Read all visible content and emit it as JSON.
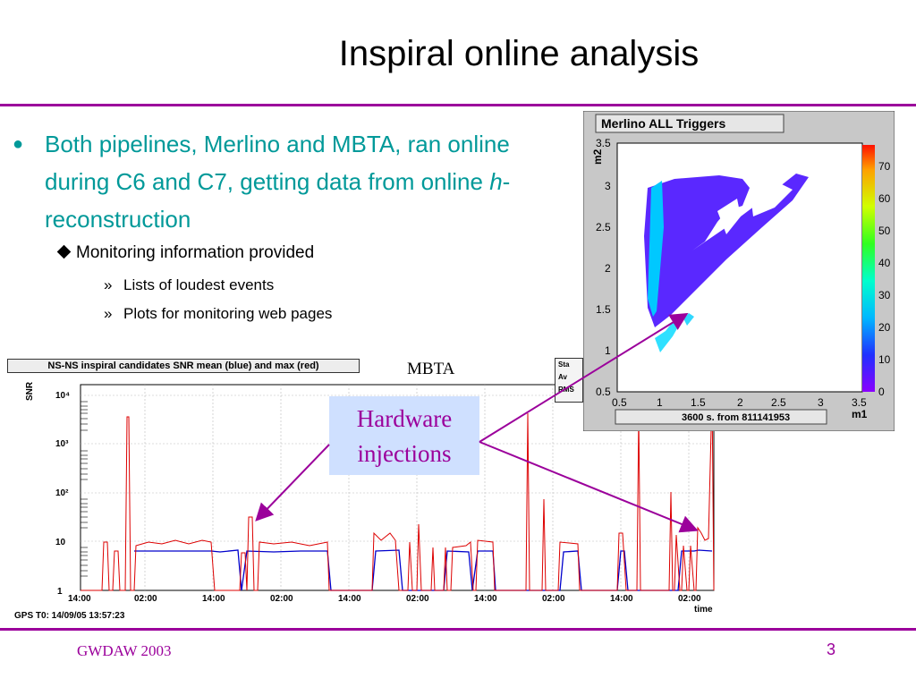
{
  "slide": {
    "title": "Inspiral online analysis",
    "footer_left": "GWDAW 2003",
    "page_number": "3"
  },
  "bullets": {
    "main_text": "Both pipelines, Merlino and MBTA, ran online during C6 and C7, getting data from online ",
    "main_italic": "h",
    "main_tail": "-reconstruction",
    "sub": "Monitoring information provided",
    "subsub": [
      "Lists of loudest events",
      "Plots for monitoring web pages"
    ]
  },
  "annotations": {
    "mbta_label": "MBTA",
    "hardware_line1": "Hardware",
    "hardware_line2": "injections"
  },
  "colors": {
    "accent": "#9b009b",
    "bullet_text": "#009999",
    "callout_bg": "#cfe0ff"
  },
  "chart_data": [
    {
      "type": "line",
      "title": "NS-NS inspiral candidates SNR mean (blue) and max (red)",
      "ylabel": "SNR",
      "xlabel": "time",
      "yscale": "log",
      "ylim": [
        1,
        10000
      ],
      "y_ticks": [
        "1",
        "10",
        "10²",
        "10³",
        "10⁴"
      ],
      "x_ticks": [
        "14:00",
        "02:00",
        "14:00",
        "02:00",
        "14:00",
        "02:00",
        "14:00",
        "02:00",
        "14:00",
        "02:00"
      ],
      "gps_t0": "GPS T0: 14/09/05 13:57:23",
      "stats_box": [
        "Sta",
        "Av",
        "RMS"
      ],
      "series": [
        {
          "name": "mean",
          "color": "#0000cc"
        },
        {
          "name": "max",
          "color": "#dd0000"
        }
      ]
    },
    {
      "type": "heatmap",
      "title": "Merlino ALL Triggers",
      "xlabel": "m1",
      "ylabel": "m2",
      "xlim": [
        0.5,
        3.5
      ],
      "ylim": [
        0.5,
        3.5
      ],
      "x_ticks": [
        "0.5",
        "1",
        "1.5",
        "2",
        "2.5",
        "3",
        "3.5"
      ],
      "y_ticks": [
        "0.5",
        "1",
        "1.5",
        "2",
        "2.5",
        "3",
        "3.5"
      ],
      "colorbar_ticks": [
        "0",
        "10",
        "20",
        "30",
        "40",
        "50",
        "60",
        "70"
      ],
      "footer": "3600 s. from 811141953"
    }
  ]
}
